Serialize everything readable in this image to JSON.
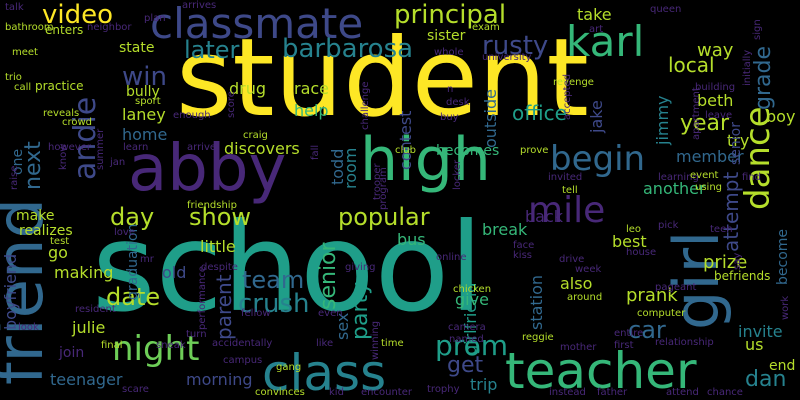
{
  "background": "#000000",
  "palette": {
    "yellow": "#fde725",
    "lime": "#b5de2b",
    "green": "#6ece58",
    "seagreen": "#35b779",
    "teal": "#1f9e89",
    "cyan": "#26828e",
    "blue": "#31688e",
    "indigo": "#3e4989",
    "purple": "#482878",
    "dark": "#440154"
  },
  "words": [
    {
      "text": "student",
      "color": "#fde725"
    },
    {
      "text": "school",
      "color": "#1f9e89"
    },
    {
      "text": "friend",
      "color": "#31688e"
    },
    {
      "text": "abby",
      "color": "#482878"
    },
    {
      "text": "high",
      "color": "#35b779"
    },
    {
      "text": "classmate",
      "color": "#3e4989"
    },
    {
      "text": "girl",
      "color": "#31688e"
    },
    {
      "text": "teacher",
      "color": "#35b779"
    },
    {
      "text": "class",
      "color": "#26828e"
    },
    {
      "text": "night",
      "color": "#6ece58"
    },
    {
      "text": "karl",
      "color": "#35b779"
    },
    {
      "text": "mile",
      "color": "#482878"
    },
    {
      "text": "begin",
      "color": "#31688e"
    },
    {
      "text": "principal",
      "color": "#b5de2b"
    },
    {
      "text": "dance",
      "color": "#b5de2b"
    },
    {
      "text": "andie",
      "color": "#3e4989"
    },
    {
      "text": "video",
      "color": "#fde725"
    },
    {
      "text": "rusty",
      "color": "#3e4989"
    },
    {
      "text": "barbarosa",
      "color": "#26828e"
    },
    {
      "text": "later",
      "color": "#26828e"
    },
    {
      "text": "popular",
      "color": "#b5de2b"
    },
    {
      "text": "show",
      "color": "#b5de2b"
    },
    {
      "text": "day",
      "color": "#b5de2b"
    },
    {
      "text": "win",
      "color": "#3e4989"
    },
    {
      "text": "next",
      "color": "#31688e"
    },
    {
      "text": "team",
      "color": "#31688e"
    },
    {
      "text": "crush",
      "color": "#26828e"
    },
    {
      "text": "prom",
      "color": "#1f9e89"
    },
    {
      "text": "car",
      "color": "#31688e"
    },
    {
      "text": "date",
      "color": "#b5de2b"
    },
    {
      "text": "parent",
      "color": "#3e4989"
    },
    {
      "text": "senior",
      "color": "#35b779"
    },
    {
      "text": "party",
      "color": "#1f9e89"
    },
    {
      "text": "year",
      "color": "#b5de2b"
    },
    {
      "text": "local",
      "color": "#b5de2b"
    },
    {
      "text": "way",
      "color": "#b5de2b"
    },
    {
      "text": "grade",
      "color": "#31688e"
    },
    {
      "text": "attempt",
      "color": "#3e4989"
    },
    {
      "text": "office",
      "color": "#1f9e89"
    },
    {
      "text": "outside",
      "color": "#31688e"
    },
    {
      "text": "contest",
      "color": "#3e4989"
    },
    {
      "text": "get",
      "color": "#3e4989"
    },
    {
      "text": "station",
      "color": "#31688e"
    },
    {
      "text": "girlfriend",
      "color": "#1f9e89"
    },
    {
      "text": "sex",
      "color": "#31688e"
    },
    {
      "text": "trip",
      "color": "#26828e"
    },
    {
      "text": "dan",
      "color": "#26828e"
    },
    {
      "text": "invite",
      "color": "#26828e"
    },
    {
      "text": "prank",
      "color": "#b5de2b"
    },
    {
      "text": "prize",
      "color": "#b5de2b"
    },
    {
      "text": "best",
      "color": "#b5de2b"
    },
    {
      "text": "room",
      "color": "#26828e"
    },
    {
      "text": "todd",
      "color": "#31688e"
    },
    {
      "text": "drug",
      "color": "#b5de2b"
    },
    {
      "text": "race",
      "color": "#b5de2b"
    },
    {
      "text": "help",
      "color": "#35b779"
    },
    {
      "text": "laney",
      "color": "#b5de2b"
    },
    {
      "text": "discovers",
      "color": "#b5de2b"
    },
    {
      "text": "bully",
      "color": "#b5de2b"
    },
    {
      "text": "state",
      "color": "#b5de2b"
    },
    {
      "text": "enters",
      "color": "#b5de2b"
    },
    {
      "text": "practice",
      "color": "#b5de2b"
    },
    {
      "text": "home",
      "color": "#31688e"
    },
    {
      "text": "one",
      "color": "#31688e"
    },
    {
      "text": "make",
      "color": "#b5de2b"
    },
    {
      "text": "go",
      "color": "#b5de2b"
    },
    {
      "text": "making",
      "color": "#b5de2b"
    },
    {
      "text": "julie",
      "color": "#b5de2b"
    },
    {
      "text": "join",
      "color": "#482878"
    },
    {
      "text": "little",
      "color": "#b5de2b"
    },
    {
      "text": "old",
      "color": "#3e4989"
    },
    {
      "text": "bus",
      "color": "#35b779"
    },
    {
      "text": "back",
      "color": "#482878"
    },
    {
      "text": "give",
      "color": "#35b779"
    },
    {
      "text": "also",
      "color": "#b5de2b"
    },
    {
      "text": "break",
      "color": "#35b779"
    },
    {
      "text": "becomes",
      "color": "#35b779"
    },
    {
      "text": "member",
      "color": "#31688e"
    },
    {
      "text": "another",
      "color": "#35b779"
    },
    {
      "text": "sister",
      "color": "#b5de2b"
    },
    {
      "text": "jake",
      "color": "#3e4989"
    },
    {
      "text": "jimmy",
      "color": "#26828e"
    },
    {
      "text": "beth",
      "color": "#b5de2b"
    },
    {
      "text": "try",
      "color": "#b5de2b"
    },
    {
      "text": "senior",
      "color": "#3e4989"
    },
    {
      "text": "boy",
      "color": "#b5de2b"
    },
    {
      "text": "end",
      "color": "#b5de2b"
    },
    {
      "text": "become",
      "color": "#31688e"
    },
    {
      "text": "boyfriend",
      "color": "#3e4989"
    },
    {
      "text": "graduation",
      "color": "#31688e"
    },
    {
      "text": "realizes",
      "color": "#b5de2b"
    },
    {
      "text": "teenager",
      "color": "#31688e"
    },
    {
      "text": "morning",
      "color": "#3e4989"
    },
    {
      "text": "take",
      "color": "#b5de2b"
    },
    {
      "text": "us",
      "color": "#b5de2b"
    },
    {
      "text": "plan",
      "color": "#482878"
    },
    {
      "text": "arrives",
      "color": "#482878"
    },
    {
      "text": "talk",
      "color": "#482878"
    },
    {
      "text": "bathroom",
      "color": "#b5de2b"
    },
    {
      "text": "meet",
      "color": "#b5de2b"
    },
    {
      "text": "trio",
      "color": "#b5de2b"
    },
    {
      "text": "call",
      "color": "#b5de2b"
    },
    {
      "text": "reveals",
      "color": "#b5de2b"
    },
    {
      "text": "crowd",
      "color": "#b5de2b"
    },
    {
      "text": "sport",
      "color": "#b5de2b"
    },
    {
      "text": "enough",
      "color": "#482878"
    },
    {
      "text": "score",
      "color": "#482878"
    },
    {
      "text": "craig",
      "color": "#b5de2b"
    },
    {
      "text": "arrive",
      "color": "#482878"
    },
    {
      "text": "learn",
      "color": "#482878"
    },
    {
      "text": "however",
      "color": "#482878"
    },
    {
      "text": "raise",
      "color": "#482878"
    },
    {
      "text": "test",
      "color": "#b5de2b"
    },
    {
      "text": "love",
      "color": "#482878"
    },
    {
      "text": "friendship",
      "color": "#b5de2b"
    },
    {
      "text": "mr",
      "color": "#482878"
    },
    {
      "text": "despite",
      "color": "#482878"
    },
    {
      "text": "giving",
      "color": "#482878"
    },
    {
      "text": "online",
      "color": "#482878"
    },
    {
      "text": "face",
      "color": "#482878"
    },
    {
      "text": "kiss",
      "color": "#482878"
    },
    {
      "text": "drive",
      "color": "#482878"
    },
    {
      "text": "leo",
      "color": "#b5de2b"
    },
    {
      "text": "house",
      "color": "#482878"
    },
    {
      "text": "week",
      "color": "#482878"
    },
    {
      "text": "pageant",
      "color": "#482878"
    },
    {
      "text": "computer",
      "color": "#b5de2b"
    },
    {
      "text": "entire",
      "color": "#482878"
    },
    {
      "text": "first",
      "color": "#482878"
    },
    {
      "text": "relationship",
      "color": "#482878"
    },
    {
      "text": "mother",
      "color": "#482878"
    },
    {
      "text": "father",
      "color": "#482878"
    },
    {
      "text": "instead",
      "color": "#482878"
    },
    {
      "text": "attend",
      "color": "#482878"
    },
    {
      "text": "chance",
      "color": "#482878"
    },
    {
      "text": "trophy",
      "color": "#482878"
    },
    {
      "text": "encounter",
      "color": "#482878"
    },
    {
      "text": "kid",
      "color": "#482878"
    },
    {
      "text": "convinces",
      "color": "#b5de2b"
    },
    {
      "text": "gang",
      "color": "#b5de2b"
    },
    {
      "text": "scare",
      "color": "#482878"
    },
    {
      "text": "final",
      "color": "#b5de2b"
    },
    {
      "text": "sneak",
      "color": "#482878"
    },
    {
      "text": "turn",
      "color": "#482878"
    },
    {
      "text": "campus",
      "color": "#482878"
    },
    {
      "text": "accidentally",
      "color": "#482878"
    },
    {
      "text": "like",
      "color": "#482878"
    },
    {
      "text": "time",
      "color": "#b5de2b"
    },
    {
      "text": "reggie",
      "color": "#b5de2b"
    },
    {
      "text": "chicken",
      "color": "#b5de2b"
    },
    {
      "text": "camera",
      "color": "#482878"
    },
    {
      "text": "named",
      "color": "#482878"
    },
    {
      "text": "around",
      "color": "#b5de2b"
    },
    {
      "text": "fellow",
      "color": "#482878"
    },
    {
      "text": "even",
      "color": "#482878"
    },
    {
      "text": "winning",
      "color": "#482878"
    },
    {
      "text": "resident",
      "color": "#482878"
    },
    {
      "text": "look",
      "color": "#482878"
    },
    {
      "text": "performance",
      "color": "#482878"
    },
    {
      "text": "learning",
      "color": "#482878"
    },
    {
      "text": "event",
      "color": "#b5de2b"
    },
    {
      "text": "using",
      "color": "#b5de2b"
    },
    {
      "text": "teen",
      "color": "#482878"
    },
    {
      "text": "say",
      "color": "#482878"
    },
    {
      "text": "befriends",
      "color": "#b5de2b"
    },
    {
      "text": "work",
      "color": "#482878"
    },
    {
      "text": "pick",
      "color": "#482878"
    },
    {
      "text": "find",
      "color": "#482878"
    },
    {
      "text": "queen",
      "color": "#482878"
    },
    {
      "text": "leave",
      "color": "#482878"
    },
    {
      "text": "building",
      "color": "#482878"
    },
    {
      "text": "apartment",
      "color": "#482878"
    },
    {
      "text": "initially",
      "color": "#482878"
    },
    {
      "text": "sign",
      "color": "#482878"
    },
    {
      "text": "exam",
      "color": "#b5de2b"
    },
    {
      "text": "art",
      "color": "#482878"
    },
    {
      "text": "university",
      "color": "#482878"
    },
    {
      "text": "whole",
      "color": "#482878"
    },
    {
      "text": "revenge",
      "color": "#b5de2b"
    },
    {
      "text": "accepted",
      "color": "#482878"
    },
    {
      "text": "desk",
      "color": "#482878"
    },
    {
      "text": "buy",
      "color": "#482878"
    },
    {
      "text": "challenge",
      "color": "#482878"
    },
    {
      "text": "club",
      "color": "#b5de2b"
    },
    {
      "text": "prove",
      "color": "#b5de2b"
    },
    {
      "text": "invited",
      "color": "#482878"
    },
    {
      "text": "tell",
      "color": "#b5de2b"
    },
    {
      "text": "locker",
      "color": "#482878"
    },
    {
      "text": "trooper",
      "color": "#482878"
    },
    {
      "text": "program",
      "color": "#482878"
    },
    {
      "text": "neighbor",
      "color": "#482878"
    },
    {
      "text": "summer",
      "color": "#482878"
    },
    {
      "text": "jan",
      "color": "#482878"
    },
    {
      "text": "know",
      "color": "#482878"
    },
    {
      "text": "fall",
      "color": "#482878"
    },
    {
      "text": "n",
      "color": "#482878"
    }
  ]
}
